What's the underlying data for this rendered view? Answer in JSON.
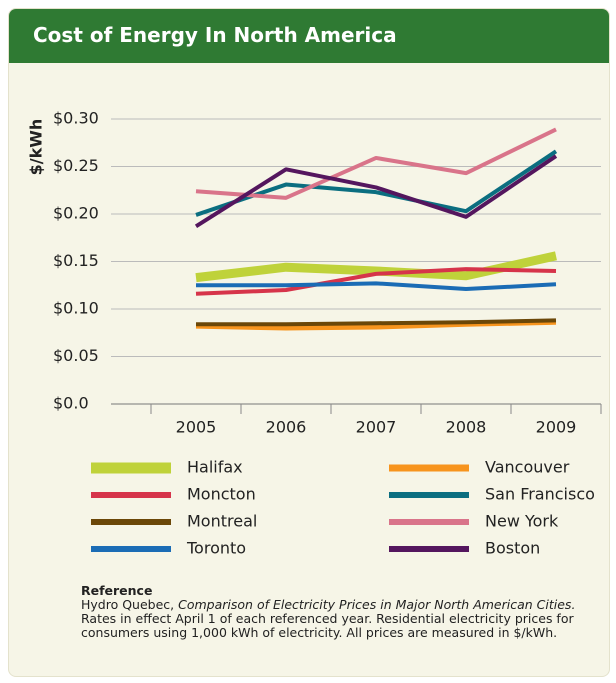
{
  "chart_data": {
    "type": "line",
    "title": "Cost of Energy In North America",
    "ylabel": "$/kWh",
    "categories": [
      "2005",
      "2006",
      "2007",
      "2008",
      "2009"
    ],
    "series": [
      {
        "name": "Halifax",
        "color": "#bfd23a",
        "line_width": 9,
        "values": [
          0.133,
          0.144,
          0.14,
          0.135,
          0.156
        ]
      },
      {
        "name": "Vancouver",
        "color": "#f7941d",
        "line_width": 5,
        "values": [
          0.082,
          0.08,
          0.081,
          0.084,
          0.086
        ]
      },
      {
        "name": "Moncton",
        "color": "#d6344a",
        "line_width": 4,
        "values": [
          0.116,
          0.12,
          0.137,
          0.142,
          0.14
        ]
      },
      {
        "name": "San Francisco",
        "color": "#0b6e80",
        "line_width": 4,
        "values": [
          0.199,
          0.231,
          0.223,
          0.203,
          0.266
        ]
      },
      {
        "name": "Montreal",
        "color": "#6b4708",
        "line_width": 4,
        "values": [
          0.084,
          0.084,
          0.085,
          0.086,
          0.088
        ]
      },
      {
        "name": "New York",
        "color": "#d9748a",
        "line_width": 4,
        "values": [
          0.224,
          0.217,
          0.259,
          0.243,
          0.289
        ]
      },
      {
        "name": "Toronto",
        "color": "#1b6cb5",
        "line_width": 4,
        "values": [
          0.125,
          0.125,
          0.127,
          0.121,
          0.126
        ]
      },
      {
        "name": "Boston",
        "color": "#54165e",
        "line_width": 4,
        "values": [
          0.187,
          0.247,
          0.228,
          0.197,
          0.261
        ]
      }
    ],
    "ylim": [
      0,
      0.3
    ],
    "yticks": [
      {
        "value": 0,
        "label": "$0.0"
      },
      {
        "value": 0.05,
        "label": "$0.05"
      },
      {
        "value": 0.1,
        "label": "$0.10"
      },
      {
        "value": 0.15,
        "label": "$0.15"
      },
      {
        "value": 0.2,
        "label": "$0.20"
      },
      {
        "value": 0.25,
        "label": "$0.25"
      },
      {
        "value": 0.3,
        "label": "$0.30"
      }
    ],
    "grid": true
  },
  "reference": {
    "heading": "Reference",
    "source_author": "Hydro Quebec,",
    "source_title": "Comparison of Electricity Prices in Major North American Cities.",
    "note": "Rates in effect April 1 of each referenced year. Residential electricity prices for consumers using 1,000 kWh of electricity. All prices are measured in $/kWh."
  }
}
